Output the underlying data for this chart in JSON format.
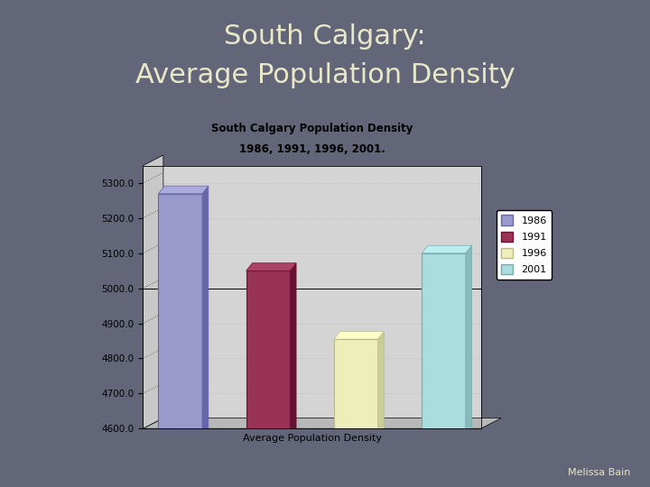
{
  "main_title_line1": "South Calgary:",
  "main_title_line2": "Average Population Density",
  "main_title_color": "#e8e8c8",
  "main_bg_color": "#636578",
  "chart_title_line1": "South Calgary Population Density",
  "chart_title_line2": "1986, 1991, 1996, 2001.",
  "xlabel": "Average Population Density",
  "years": [
    "1986",
    "1991",
    "1996",
    "2001"
  ],
  "values": [
    5270,
    5050,
    4855,
    5100
  ],
  "bar_colors": [
    "#9999cc",
    "#993355",
    "#eeeebb",
    "#aadddd"
  ],
  "bar_edge_colors": [
    "#6666aa",
    "#771133",
    "#bbbb88",
    "#77aaaa"
  ],
  "bar_top_colors": [
    "#aaaadd",
    "#aa4466",
    "#ffffcc",
    "#bbeeee"
  ],
  "bar_right_colors": [
    "#6666aa",
    "#661133",
    "#cccc99",
    "#88bbbb"
  ],
  "ylim": [
    4600,
    5350
  ],
  "yticks": [
    4600.0,
    4700.0,
    4800.0,
    4900.0,
    5000.0,
    5100.0,
    5200.0,
    5300.0
  ],
  "chart_area_bg": "#d4d4d4",
  "wall_left_bg": "#c0c0c0",
  "floor_bg": "#c8c8c8",
  "legend_years": [
    "1986",
    "1991",
    "1996",
    "2001"
  ],
  "footnote": "Melissa Bain"
}
